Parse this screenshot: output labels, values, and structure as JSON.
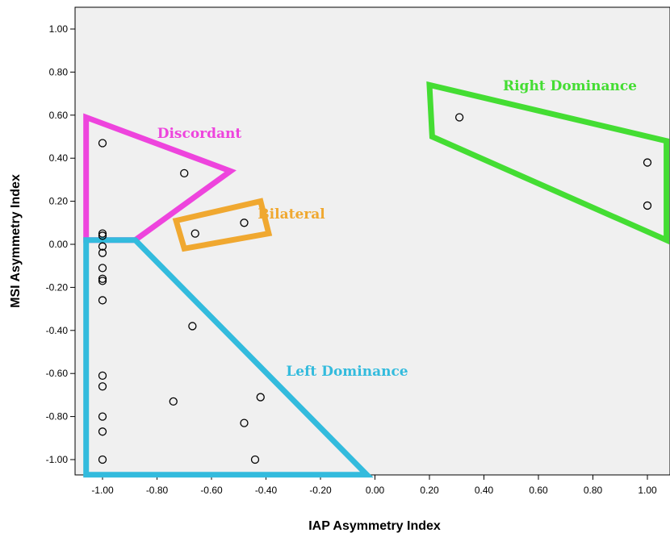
{
  "chart_data": {
    "type": "scatter",
    "title": "",
    "xlabel": "IAP Asymmetry Index",
    "ylabel": "MSI Asymmetry Index",
    "xlim": [
      -1.1,
      1.1
    ],
    "ylim": [
      -1.1,
      1.1
    ],
    "grid": false,
    "x_ticks": [
      "-1.00",
      "-0.80",
      "-0.60",
      "-0.40",
      "-0.20",
      "0.00",
      "0.20",
      "0.40",
      "0.60",
      "0.80",
      "1.00"
    ],
    "y_ticks": [
      "1.00",
      "0.80",
      "0.60",
      "0.40",
      "0.20",
      "0.00",
      "-0.20",
      "-0.40",
      "-0.60",
      "-0.80",
      "-1.00"
    ],
    "points": [
      {
        "x": -1.0,
        "y": 0.47
      },
      {
        "x": -0.7,
        "y": 0.33
      },
      {
        "x": -1.0,
        "y": 0.05
      },
      {
        "x": -1.0,
        "y": 0.04
      },
      {
        "x": -1.0,
        "y": -0.01
      },
      {
        "x": -1.0,
        "y": -0.04
      },
      {
        "x": -1.0,
        "y": -0.11
      },
      {
        "x": -1.0,
        "y": -0.16
      },
      {
        "x": -1.0,
        "y": -0.17
      },
      {
        "x": -1.0,
        "y": -0.26
      },
      {
        "x": -1.0,
        "y": -0.61
      },
      {
        "x": -1.0,
        "y": -0.66
      },
      {
        "x": -1.0,
        "y": -0.8
      },
      {
        "x": -1.0,
        "y": -0.87
      },
      {
        "x": -1.0,
        "y": -1.0
      },
      {
        "x": -0.66,
        "y": 0.05
      },
      {
        "x": -0.48,
        "y": 0.1
      },
      {
        "x": -0.67,
        "y": -0.38
      },
      {
        "x": -0.74,
        "y": -0.73
      },
      {
        "x": -0.42,
        "y": -0.71
      },
      {
        "x": -0.48,
        "y": -0.83
      },
      {
        "x": -0.44,
        "y": -1.0
      },
      {
        "x": 0.31,
        "y": 0.59
      },
      {
        "x": 1.0,
        "y": 0.38
      },
      {
        "x": 1.0,
        "y": 0.18
      }
    ],
    "regions": [
      {
        "label": "Discordant",
        "color": "#ee44dd",
        "polygon": [
          [
            -1.06,
            0.59
          ],
          [
            -0.53,
            0.34
          ],
          [
            -0.88,
            0.02
          ],
          [
            -1.06,
            0.02
          ]
        ]
      },
      {
        "label": "Bilateral",
        "color": "#f0a830",
        "polygon": [
          [
            -0.73,
            0.11
          ],
          [
            -0.42,
            0.2
          ],
          [
            -0.39,
            0.05
          ],
          [
            -0.7,
            -0.02
          ]
        ]
      },
      {
        "label": "Left Dominance",
        "color": "#33bbdd",
        "polygon": [
          [
            -1.06,
            0.02
          ],
          [
            -0.88,
            0.02
          ],
          [
            -0.03,
            -1.07
          ],
          [
            -1.06,
            -1.07
          ]
        ]
      },
      {
        "label": "Right Dominance",
        "color": "#44dd33",
        "polygon": [
          [
            0.2,
            0.74
          ],
          [
            0.21,
            0.5
          ],
          [
            1.07,
            0.02
          ],
          [
            1.07,
            0.48
          ]
        ]
      }
    ]
  }
}
